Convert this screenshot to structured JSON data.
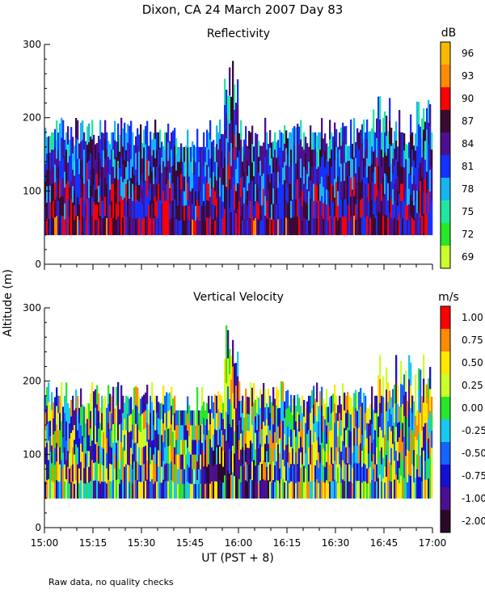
{
  "figure": {
    "title": "Dixon, CA 24 March 2007  Day  83",
    "y_axis_label": "Altitude (m)",
    "x_axis_label": "UT  (PST + 8)",
    "note": "Raw data, no quality checks"
  },
  "chart_data": [
    {
      "type": "heatmap",
      "title": "Reflectivity",
      "xlabel": "UT  (PST + 8)",
      "ylabel": "Altitude (m)",
      "x_ticks": [
        "15:00",
        "15:15",
        "15:30",
        "15:45",
        "16:00",
        "16:15",
        "16:30",
        "16:45",
        "17:00"
      ],
      "x_range_minutes": [
        0,
        120
      ],
      "y_ticks": [
        "0",
        "100",
        "200",
        "300"
      ],
      "ylim": [
        0,
        300
      ],
      "data_range_m": [
        40,
        280
      ],
      "colorbar": {
        "unit": "dB",
        "labels": [
          "96",
          "93",
          "90",
          "87",
          "84",
          "81",
          "78",
          "75",
          "72",
          "69"
        ],
        "colors": [
          "#f7b800",
          "#ff8c00",
          "#ff0000",
          "#3a0a30",
          "#4b108f",
          "#1432ff",
          "#18b4f0",
          "#20e6a0",
          "#28e628",
          "#ccff2a"
        ]
      }
    },
    {
      "type": "heatmap",
      "title": "Vertical Velocity",
      "xlabel": "UT  (PST + 8)",
      "ylabel": "Altitude (m)",
      "x_ticks": [
        "15:00",
        "15:15",
        "15:30",
        "15:45",
        "16:00",
        "16:15",
        "16:30",
        "16:45",
        "17:00"
      ],
      "x_range_minutes": [
        0,
        120
      ],
      "y_ticks": [
        "0",
        "100",
        "200",
        "300"
      ],
      "ylim": [
        0,
        300
      ],
      "data_range_m": [
        40,
        280
      ],
      "colorbar": {
        "unit": "m/s",
        "labels": [
          "1.00",
          "0.75",
          "0.50",
          "0.25",
          "0.00",
          "-0.25",
          "-0.50",
          "-0.75",
          "-1.00",
          "-2.00"
        ],
        "colors": [
          "#ff0000",
          "#ff8c00",
          "#ffe600",
          "#ccff2a",
          "#28e628",
          "#18c8f0",
          "#1464ff",
          "#1410d0",
          "#4b108f",
          "#2a0a28"
        ]
      }
    }
  ]
}
